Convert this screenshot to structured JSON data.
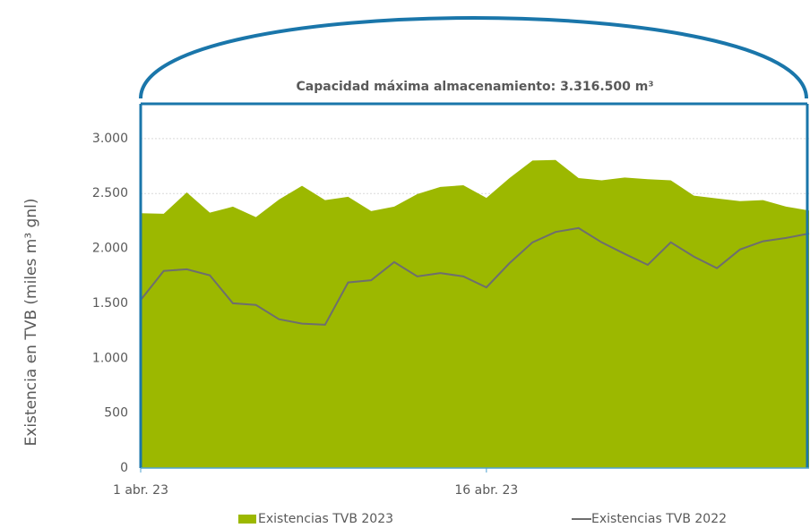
{
  "chart_data": {
    "type": "area",
    "y_label": "Existencia en TVB (miles m³ gnl)",
    "x": [
      "2023-04-01",
      "2023-04-02",
      "2023-04-03",
      "2023-04-04",
      "2023-04-05",
      "2023-04-06",
      "2023-04-07",
      "2023-04-08",
      "2023-04-09",
      "2023-04-10",
      "2023-04-11",
      "2023-04-12",
      "2023-04-13",
      "2023-04-14",
      "2023-04-15",
      "2023-04-16",
      "2023-04-17",
      "2023-04-18",
      "2023-04-19",
      "2023-04-20",
      "2023-04-21",
      "2023-04-22",
      "2023-04-23",
      "2023-04-24",
      "2023-04-25",
      "2023-04-26",
      "2023-04-27",
      "2023-04-28",
      "2023-04-29",
      "2023-04-30"
    ],
    "series": [
      {
        "name": "Existencias TVB 2023",
        "type": "area",
        "color": "#9cb800",
        "values": [
          2320,
          2315,
          2510,
          2325,
          2380,
          2285,
          2445,
          2570,
          2440,
          2470,
          2340,
          2380,
          2495,
          2560,
          2575,
          2460,
          2640,
          2800,
          2805,
          2640,
          2620,
          2645,
          2630,
          2620,
          2480,
          2455,
          2430,
          2440,
          2380,
          2345
        ]
      },
      {
        "name": "Existencias TVB 2022",
        "type": "line",
        "color": "#6e6e6e",
        "values": [
          1530,
          1795,
          1810,
          1755,
          1500,
          1485,
          1355,
          1315,
          1305,
          1690,
          1710,
          1875,
          1745,
          1775,
          1745,
          1645,
          1865,
          2055,
          2150,
          2185,
          2055,
          1950,
          1850,
          2055,
          1925,
          1820,
          1990,
          2065,
          2095,
          2135
        ]
      }
    ],
    "capacity_line": {
      "value": 3316.5,
      "label": "Capacidad máxima almacenamiento: 3.316.500 m³",
      "color": "#1a76aa"
    },
    "xlim": [
      "2023-04-01",
      "2023-04-30"
    ],
    "xticks": [
      {
        "value": "2023-04-01",
        "label": "1 abr. 23"
      },
      {
        "value": "2023-04-16",
        "label": "16 abr. 23"
      }
    ],
    "ylim": [
      0,
      3316.5
    ],
    "yticks": [
      0,
      500,
      {
        "value": 1000,
        "label": "1.000"
      },
      {
        "value": 1500,
        "label": "1.500"
      },
      {
        "value": 2000,
        "label": "2.000"
      },
      {
        "value": 2500,
        "label": "2.500"
      },
      {
        "value": 3000,
        "label": "3.000"
      }
    ],
    "grid": true,
    "legend": "bottom"
  }
}
